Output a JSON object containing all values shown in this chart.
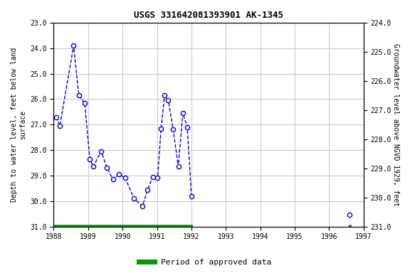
{
  "title": "USGS 331642081393901 AK-1345",
  "ylabel_left": "Depth to water level, feet below land\nsurface",
  "ylabel_right": "Groundwater level above NGVD 1929, feet",
  "xlim": [
    1988.0,
    1997.0
  ],
  "ylim_left": [
    23.0,
    31.0
  ],
  "ylim_right": [
    224.0,
    231.0
  ],
  "yticks_left": [
    23.0,
    24.0,
    25.0,
    26.0,
    27.0,
    28.0,
    29.0,
    30.0,
    31.0
  ],
  "yticks_right": [
    224.0,
    225.0,
    226.0,
    227.0,
    228.0,
    229.0,
    230.0,
    231.0
  ],
  "xticks": [
    1988,
    1989,
    1990,
    1991,
    1992,
    1993,
    1994,
    1995,
    1996,
    1997
  ],
  "segment1_x": [
    1988.08,
    1988.18,
    1988.58,
    1988.73,
    1988.9,
    1989.05,
    1989.15,
    1989.38,
    1989.55,
    1989.72,
    1989.9,
    1990.08,
    1990.33,
    1990.58,
    1990.73,
    1990.88,
    1991.02,
    1991.12,
    1991.22,
    1991.33,
    1991.47,
    1991.62,
    1991.75,
    1991.88,
    1992.0
  ],
  "segment1_y": [
    26.7,
    27.05,
    23.9,
    25.85,
    26.15,
    28.35,
    28.65,
    28.05,
    28.7,
    29.15,
    28.95,
    29.1,
    29.9,
    30.2,
    29.55,
    29.05,
    29.1,
    27.15,
    25.85,
    26.05,
    27.2,
    28.65,
    26.55,
    27.1,
    29.8
  ],
  "segment2_x": [
    1996.6
  ],
  "segment2_y": [
    30.55
  ],
  "approved_segments": [
    {
      "x_start": 1988.0,
      "x_end": 1992.05
    },
    {
      "x_start": 1996.57,
      "x_end": 1996.65
    }
  ],
  "line_color": "#0000cc",
  "marker_color": "#0000cc",
  "approved_color": "#009900",
  "background_color": "#ffffff",
  "grid_color": "#cccccc",
  "legend_label": "Period of approved data"
}
